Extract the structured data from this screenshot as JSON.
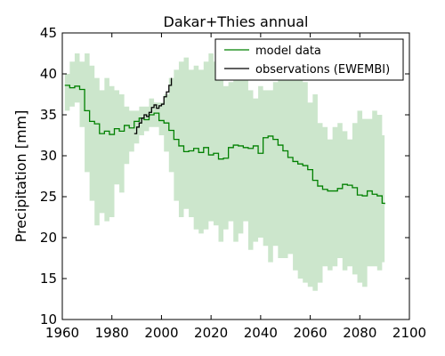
{
  "chart_data": {
    "type": "line",
    "title": "Dakar+Thies annual",
    "xlabel": "",
    "ylabel": "Precipitation [mm]",
    "xlim": [
      1960,
      2100
    ],
    "ylim": [
      10,
      45
    ],
    "xticks": [
      1960,
      1980,
      2000,
      2020,
      2040,
      2060,
      2080,
      2100
    ],
    "yticks": [
      10,
      15,
      20,
      25,
      30,
      35,
      40,
      45
    ],
    "legend_position": "top-right",
    "grid": false,
    "series": [
      {
        "name": "model data",
        "color": "#008000",
        "step": true,
        "x": [
          1961,
          1963,
          1965,
          1967,
          1969,
          1971,
          1973,
          1975,
          1977,
          1979,
          1981,
          1983,
          1985,
          1987,
          1989,
          1991,
          1993,
          1995,
          1997,
          1999,
          2001,
          2003,
          2005,
          2007,
          2009,
          2011,
          2013,
          2015,
          2017,
          2019,
          2021,
          2023,
          2025,
          2027,
          2029,
          2031,
          2033,
          2035,
          2037,
          2039,
          2041,
          2043,
          2045,
          2047,
          2049,
          2051,
          2053,
          2055,
          2057,
          2059,
          2061,
          2063,
          2065,
          2067,
          2069,
          2071,
          2073,
          2075,
          2077,
          2079,
          2081,
          2083,
          2085,
          2087,
          2089,
          2090
        ],
        "values": [
          38.6,
          38.3,
          38.5,
          38.1,
          35.5,
          34.2,
          33.9,
          32.7,
          33.0,
          32.6,
          33.3,
          33.0,
          33.7,
          33.4,
          34.2,
          34.6,
          34.4,
          35.0,
          35.2,
          34.3,
          34.0,
          33.1,
          32.0,
          31.2,
          30.5,
          30.6,
          30.9,
          30.4,
          31.0,
          30.1,
          30.3,
          29.6,
          29.7,
          31.0,
          31.3,
          31.2,
          31.0,
          30.9,
          31.2,
          30.3,
          32.2,
          32.4,
          32.0,
          31.3,
          30.6,
          29.8,
          29.3,
          29.0,
          28.8,
          28.3,
          27.0,
          26.3,
          25.9,
          25.7,
          25.7,
          26.0,
          26.5,
          26.4,
          26.1,
          25.2,
          25.1,
          25.7,
          25.3,
          25.1,
          24.2,
          24.1
        ]
      },
      {
        "name": "observations (EWEMBI)",
        "color": "#000000",
        "step": true,
        "x": [
          1989,
          1990,
          1991,
          1992,
          1993,
          1994,
          1995,
          1996,
          1997,
          1998,
          1999,
          2000,
          2001,
          2002,
          2003,
          2004
        ],
        "values": [
          32.7,
          33.5,
          34.0,
          34.6,
          35.0,
          34.8,
          35.3,
          35.9,
          36.2,
          35.8,
          36.1,
          36.3,
          37.2,
          37.8,
          38.6,
          39.5
        ]
      }
    ],
    "band": {
      "color": "#008000",
      "opacity": 0.2,
      "x": [
        1961,
        1963,
        1965,
        1967,
        1969,
        1971,
        1973,
        1975,
        1977,
        1979,
        1981,
        1983,
        1985,
        1987,
        1989,
        1991,
        1993,
        1995,
        1997,
        1999,
        2001,
        2003,
        2005,
        2007,
        2009,
        2011,
        2013,
        2015,
        2017,
        2019,
        2021,
        2023,
        2025,
        2027,
        2029,
        2031,
        2033,
        2035,
        2037,
        2039,
        2041,
        2043,
        2045,
        2047,
        2049,
        2051,
        2053,
        2055,
        2057,
        2059,
        2061,
        2063,
        2065,
        2067,
        2069,
        2071,
        2073,
        2075,
        2077,
        2079,
        2081,
        2083,
        2085,
        2087,
        2089,
        2090
      ],
      "lower": [
        35.5,
        36.0,
        36.5,
        33.5,
        28.0,
        24.5,
        21.5,
        23.0,
        22.0,
        22.5,
        26.5,
        25.5,
        29.0,
        30.5,
        31.5,
        32.5,
        33.0,
        33.5,
        33.5,
        32.5,
        30.5,
        28.0,
        24.5,
        22.5,
        23.5,
        22.5,
        21.0,
        20.5,
        21.0,
        22.0,
        21.5,
        19.5,
        21.0,
        22.0,
        19.5,
        20.5,
        22.0,
        18.5,
        19.5,
        20.0,
        19.0,
        17.0,
        19.0,
        17.5,
        17.5,
        18.0,
        16.0,
        15.0,
        14.5,
        14.0,
        13.5,
        14.5,
        16.5,
        16.0,
        16.5,
        17.5,
        16.0,
        16.5,
        15.5,
        14.5,
        14.0,
        16.5,
        16.5,
        16.0,
        17.0,
        17.0
      ],
      "upper": [
        40.0,
        41.5,
        42.5,
        41.5,
        42.5,
        41.0,
        39.5,
        38.0,
        39.5,
        38.5,
        38.0,
        37.5,
        36.0,
        35.5,
        35.5,
        36.0,
        36.0,
        37.0,
        36.5,
        36.5,
        37.5,
        39.5,
        40.5,
        41.5,
        42.0,
        40.5,
        41.0,
        40.5,
        41.5,
        42.5,
        41.5,
        40.5,
        38.5,
        39.0,
        40.5,
        39.5,
        40.5,
        38.0,
        37.0,
        38.5,
        38.0,
        38.0,
        39.0,
        40.0,
        42.5,
        40.5,
        40.5,
        40.0,
        39.0,
        36.5,
        37.5,
        34.0,
        33.5,
        32.0,
        33.5,
        34.0,
        33.0,
        32.0,
        34.0,
        35.5,
        34.5,
        34.5,
        35.5,
        35.0,
        32.5,
        31.5
      ]
    }
  }
}
